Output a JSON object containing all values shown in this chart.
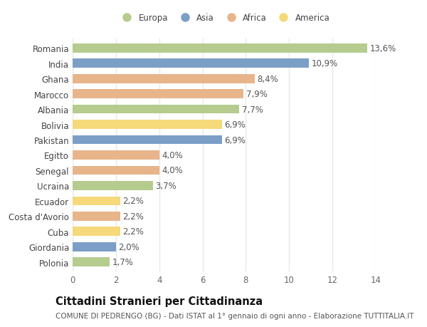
{
  "categories": [
    "Romania",
    "India",
    "Ghana",
    "Marocco",
    "Albania",
    "Bolivia",
    "Pakistan",
    "Egitto",
    "Senegal",
    "Ucraina",
    "Ecuador",
    "Costa d'Avorio",
    "Cuba",
    "Giordania",
    "Polonia"
  ],
  "values": [
    13.6,
    10.9,
    8.4,
    7.9,
    7.7,
    6.9,
    6.9,
    4.0,
    4.0,
    3.7,
    2.2,
    2.2,
    2.2,
    2.0,
    1.7
  ],
  "labels": [
    "13,6%",
    "10,9%",
    "8,4%",
    "7,9%",
    "7,7%",
    "6,9%",
    "6,9%",
    "4,0%",
    "4,0%",
    "3,7%",
    "2,2%",
    "2,2%",
    "2,2%",
    "2,0%",
    "1,7%"
  ],
  "continents": [
    "Europa",
    "Asia",
    "Africa",
    "Africa",
    "Europa",
    "America",
    "Asia",
    "Africa",
    "Africa",
    "Europa",
    "America",
    "Africa",
    "America",
    "Asia",
    "Europa"
  ],
  "continent_colors": {
    "Europa": "#b5cc8e",
    "Asia": "#7b9fc7",
    "Africa": "#e8b48a",
    "America": "#f5d97a"
  },
  "legend_order": [
    "Europa",
    "Asia",
    "Africa",
    "America"
  ],
  "title": "Cittadini Stranieri per Cittadinanza",
  "subtitle": "COMUNE DI PEDRENGO (BG) - Dati ISTAT al 1° gennaio di ogni anno - Elaborazione TUTTITALIA.IT",
  "xlim": [
    0,
    14
  ],
  "xticks": [
    0,
    2,
    4,
    6,
    8,
    10,
    12,
    14
  ],
  "background_color": "#ffffff",
  "bar_height": 0.6,
  "grid_color": "#e8e8e8",
  "label_fontsize": 8.5,
  "tick_fontsize": 8.5,
  "title_fontsize": 10.5,
  "subtitle_fontsize": 7.5
}
